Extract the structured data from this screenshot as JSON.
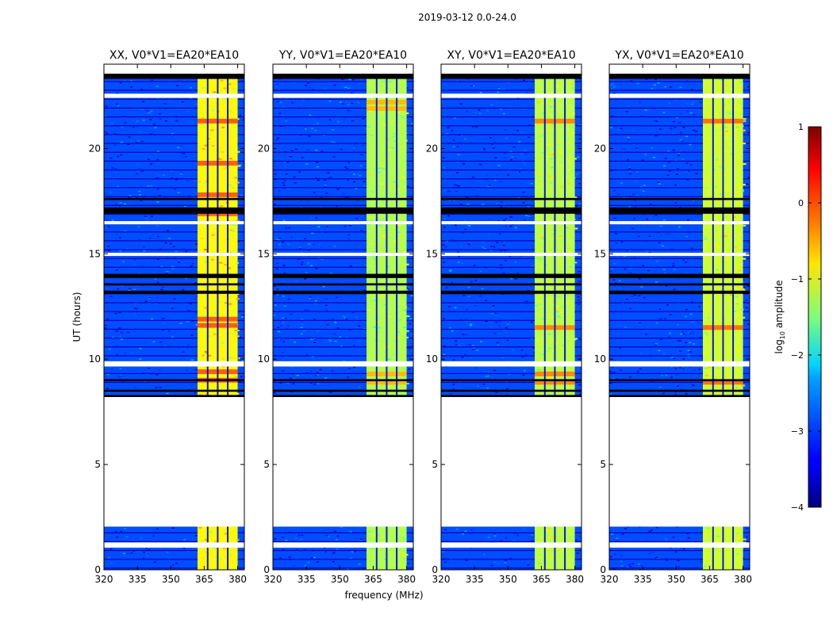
{
  "figure": {
    "suptitle": "2019-03-12 0.0-24.0",
    "xlabel": "frequency (MHz)",
    "ylabel": "UT (hours)"
  },
  "colorbar": {
    "label": "log10 amplitude",
    "label_base": "log",
    "label_sub": "10",
    "label_rest": " amplitude",
    "range": [
      -4,
      1
    ],
    "ticks": [
      1,
      0,
      -1,
      -2,
      -3,
      -4
    ],
    "tick_labels": [
      "1",
      "0",
      "−1",
      "−2",
      "−3",
      "−4"
    ],
    "colormap": "jet"
  },
  "chart_data": [
    {
      "type": "heatmap",
      "title": "XX, V0*V1=EA20*EA10",
      "x_ticks": [
        320,
        335,
        350,
        365,
        380
      ],
      "xlim": [
        320,
        383
      ],
      "y_ticks": [
        0,
        5,
        10,
        15,
        20
      ],
      "ylim": [
        0,
        24
      ],
      "band_level": -0.85,
      "hot_level": -0.1,
      "hot_rows": [
        9.0,
        9.4,
        11.6,
        11.9,
        16.9,
        17.8,
        19.3,
        21.3
      ]
    },
    {
      "type": "heatmap",
      "title": "YY, V0*V1=EA20*EA10",
      "x_ticks": [
        320,
        335,
        350,
        365,
        380
      ],
      "xlim": [
        320,
        383
      ],
      "y_ticks": [
        0,
        5,
        10,
        15,
        20
      ],
      "ylim": [
        0,
        24
      ],
      "band_level": -1.25,
      "hot_level": -0.55,
      "hot_rows": [
        8.9,
        9.3,
        21.9,
        22.2
      ]
    },
    {
      "type": "heatmap",
      "title": "XY, V0*V1=EA20*EA10",
      "x_ticks": [
        320,
        335,
        350,
        365,
        380
      ],
      "xlim": [
        320,
        383
      ],
      "y_ticks": [
        0,
        5,
        10,
        15,
        20
      ],
      "ylim": [
        0,
        24
      ],
      "band_level": -1.2,
      "hot_level": -0.3,
      "hot_rows": [
        8.9,
        9.3,
        11.5,
        21.3
      ]
    },
    {
      "type": "heatmap",
      "title": "YX, V0*V1=EA20*EA10",
      "x_ticks": [
        320,
        335,
        350,
        365,
        380
      ],
      "xlim": [
        320,
        383
      ],
      "y_ticks": [
        0,
        5,
        10,
        15,
        20
      ],
      "ylim": [
        0,
        24
      ],
      "band_level": -1.1,
      "hot_level": -0.2,
      "hot_rows": [
        8.9,
        11.5,
        21.3
      ]
    }
  ],
  "shared_structure": {
    "band_edges_mhz": [
      362,
      366.5,
      371,
      375.5,
      380
    ],
    "band_gaps_mhz": [
      [
        366.2,
        366.9
      ],
      [
        370.7,
        371.4
      ],
      [
        375.2,
        375.9
      ]
    ],
    "band_stop_mhz": 380.0,
    "no_data_hours": [
      [
        2.05,
        8.2
      ]
    ],
    "flagged_white_hours": [
      [
        1.05,
        1.3
      ],
      [
        9.65,
        9.9
      ],
      [
        14.9,
        15.05
      ],
      [
        16.4,
        16.55
      ],
      [
        22.4,
        22.6
      ]
    ],
    "flagged_black_hours": [
      [
        8.2,
        8.3
      ],
      [
        8.45,
        8.55
      ],
      [
        8.95,
        9.05
      ],
      [
        13.1,
        13.25
      ],
      [
        13.5,
        13.6
      ],
      [
        13.85,
        14.05
      ],
      [
        16.9,
        17.2
      ],
      [
        17.55,
        17.65
      ],
      [
        23.3,
        23.55
      ]
    ],
    "background_level": -3.0
  }
}
